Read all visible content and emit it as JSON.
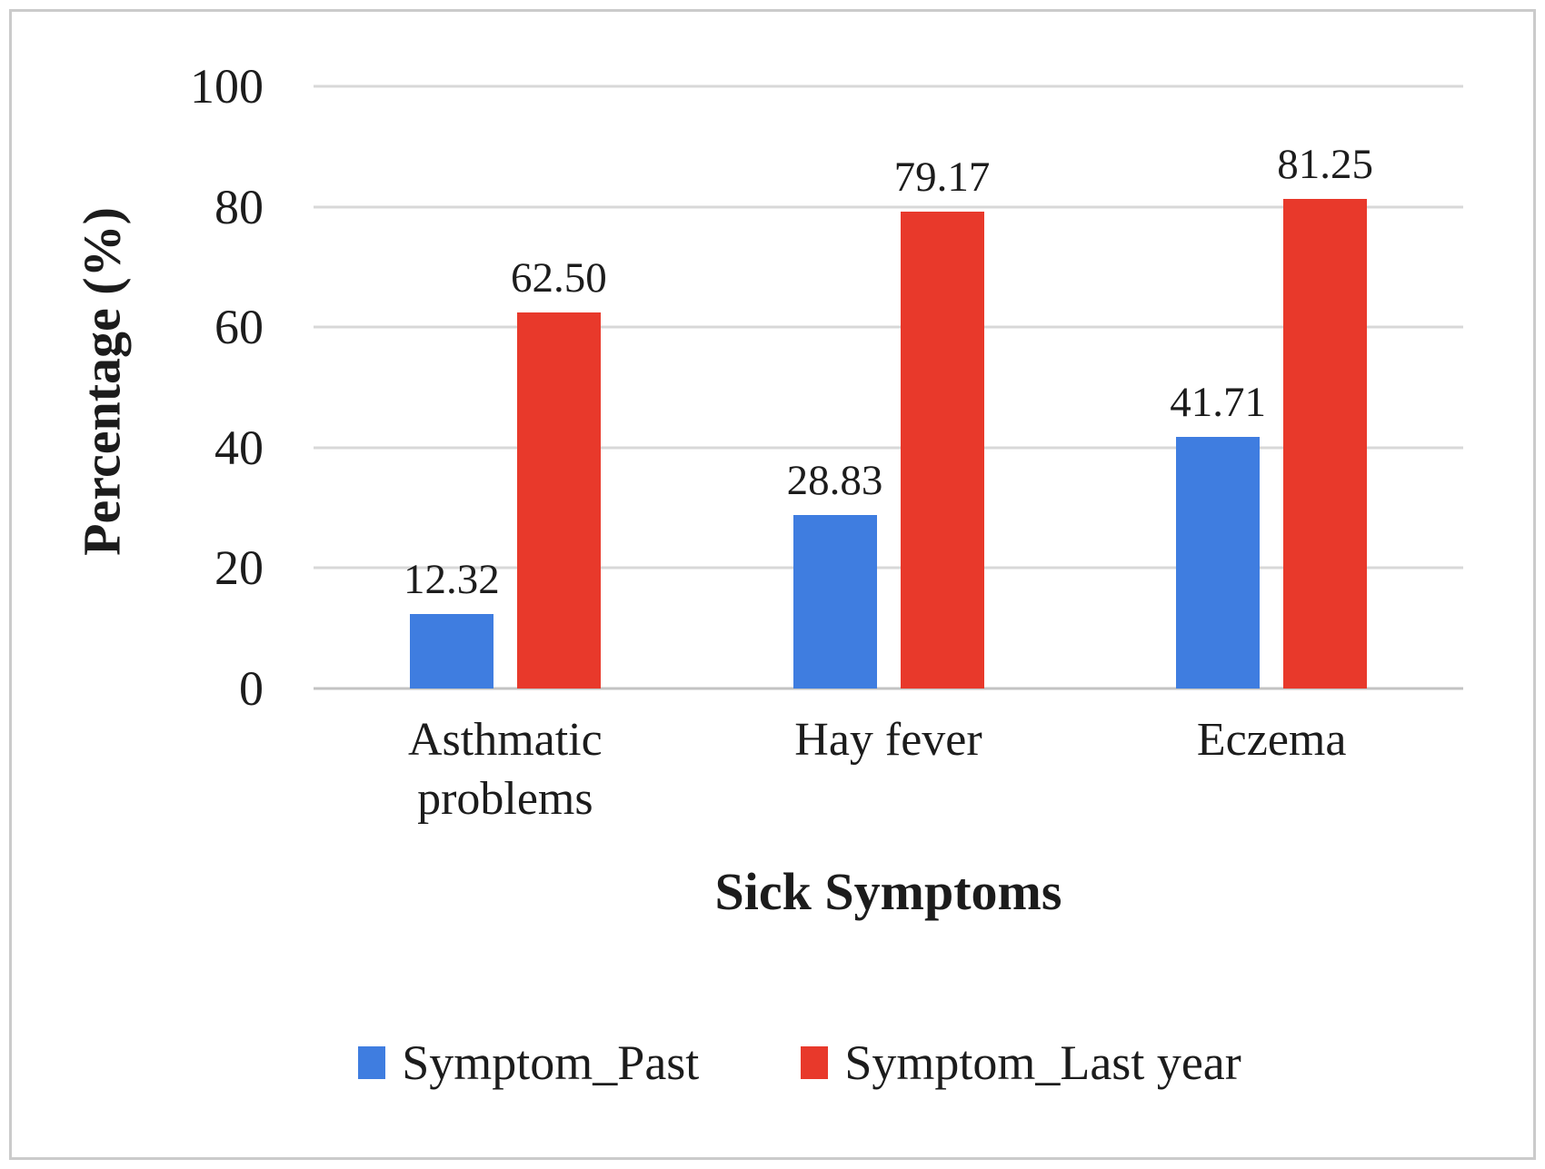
{
  "frame": {
    "border_color": "#cbcbcb",
    "background": "#ffffff"
  },
  "chart_data": {
    "type": "bar",
    "title": "",
    "xlabel": "Sick Symptoms",
    "ylabel": "Percentage (%)",
    "categories": [
      "Asthmatic problems",
      "Hay fever",
      "Eczema"
    ],
    "series": [
      {
        "name": "Symptom_Past",
        "color": "#3f7de0",
        "values": [
          12.32,
          28.83,
          41.71
        ],
        "labels": [
          "12.32",
          "28.83",
          "41.71"
        ]
      },
      {
        "name": "Symptom_Last year",
        "color": "#e8392b",
        "values": [
          62.5,
          79.17,
          81.25
        ],
        "labels": [
          "62.50",
          "79.17",
          "81.25"
        ]
      }
    ],
    "ylim": [
      0,
      100
    ],
    "yticks": [
      0,
      20,
      40,
      60,
      80,
      100
    ],
    "grid": true,
    "grid_color": "#d8d8d8",
    "axis_line_color": "#c3c3c3",
    "legend_position": "bottom"
  }
}
